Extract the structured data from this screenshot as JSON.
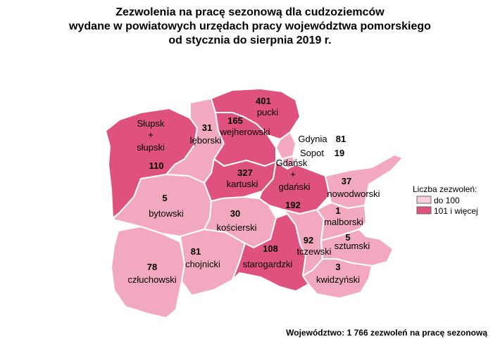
{
  "title": {
    "line1": "Zezwolenia na pracę sezonową dla cudzoziemców",
    "line2": "wydane w powiatowych urzędach pracy województwa pomorskiego",
    "line3": "od stycznia do sierpnia 2019 r."
  },
  "colors": {
    "low": "#f2a9c0",
    "high": "#e0527e",
    "low_legend": "#f8d0dc",
    "high_legend": "#e0527e"
  },
  "legend": {
    "title": "Liczba zezwoleń:",
    "low_label": "do 100",
    "high_label": "101 i więcej"
  },
  "regions": {
    "slupski": {
      "line1": "Słupsk",
      "line2": "+",
      "line3": "słupski",
      "value": "110",
      "class": "high"
    },
    "leborski": {
      "name": "lęborski",
      "value": "31",
      "class": "low"
    },
    "pucki": {
      "name": "pucki",
      "value": "401",
      "class": "high"
    },
    "wejherowski": {
      "name": "wejherowski",
      "value": "165",
      "class": "high"
    },
    "gdynia": {
      "name": "Gdynia",
      "value": "81",
      "class": "low"
    },
    "sopot": {
      "name": "Sopot",
      "value": "19",
      "class": "low"
    },
    "kartuski": {
      "name": "kartuski",
      "value": "327",
      "class": "high"
    },
    "gdanski": {
      "line1": "Gdańsk",
      "line2": "+",
      "line3": "gdański",
      "value": "192",
      "class": "high"
    },
    "nowodworski": {
      "name": "nowodworski",
      "value": "37",
      "class": "low"
    },
    "bytowski": {
      "name": "bytowski",
      "value": "5",
      "class": "low"
    },
    "koscierski": {
      "name": "kościerski",
      "value": "30",
      "class": "low"
    },
    "malborski": {
      "name": "malborski",
      "value": "1",
      "class": "low"
    },
    "sztumski": {
      "name": "sztumski",
      "value": "5",
      "class": "low"
    },
    "tczewski": {
      "name": "tczewski",
      "value": "92",
      "class": "low"
    },
    "starogardzki": {
      "name": "starogardzki",
      "value": "108",
      "class": "high"
    },
    "chojnicki": {
      "name": "chojnicki",
      "value": "81",
      "class": "low"
    },
    "czluchowski": {
      "name": "człuchowski",
      "value": "78",
      "class": "low"
    },
    "kwidzynski": {
      "name": "kwidzyński",
      "value": "3",
      "class": "low"
    }
  },
  "footer": "Województwo: 1 766 zezwoleń na pracę sezonową"
}
